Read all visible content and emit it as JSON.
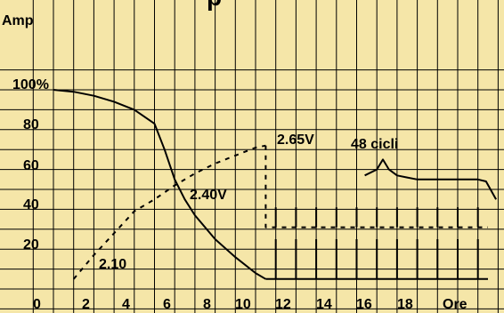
{
  "chart_data": {
    "type": "line",
    "title": "",
    "ylabel": "Amp",
    "xlabel": "Ore",
    "x_ticks": [
      "0",
      "2",
      "4",
      "6",
      "8",
      "10",
      "12",
      "14",
      "16",
      "18"
    ],
    "y_ticks": [
      "100%",
      "80",
      "60",
      "40",
      "20"
    ],
    "xlim": [
      -1,
      23
    ],
    "ylim": [
      -12,
      112
    ],
    "grid": true,
    "annotations": [
      "2.10",
      "2.40V",
      "2.65V",
      "48 cicli"
    ],
    "series": [
      {
        "style": "solid",
        "x": [
          0,
          1,
          2,
          3,
          4,
          5,
          5.5,
          6,
          6.5,
          7,
          8,
          9,
          10,
          10.5
        ],
        "y": [
          100,
          99,
          97,
          94,
          90,
          83,
          70,
          55,
          45,
          37,
          25,
          16,
          8,
          5
        ]
      },
      {
        "style": "dashed",
        "x": [
          1,
          2,
          3,
          4,
          5,
          6,
          7,
          8,
          9,
          10,
          10.5
        ],
        "y": [
          5,
          17,
          28,
          39,
          45,
          52,
          58,
          63,
          67,
          71,
          72
        ]
      },
      {
        "style": "dashed",
        "x": [
          10.5,
          10.5,
          21.5
        ],
        "y": [
          72,
          31,
          31
        ]
      },
      {
        "style": "solid",
        "x": [
          10.5,
          21.5
        ],
        "y": [
          5,
          5
        ]
      },
      {
        "style": "solid",
        "x": [
          15.4,
          16,
          16.3,
          16.6,
          17,
          17.5,
          18,
          19,
          20,
          21,
          21.4,
          21.9
        ],
        "y": [
          57,
          60,
          65,
          60,
          57,
          56,
          55,
          55,
          55,
          55,
          54,
          45
        ]
      }
    ],
    "pulse_trains": [
      {
        "style": "solid",
        "base": 5,
        "top": 25,
        "x": [
          11,
          12,
          13,
          14,
          15,
          16,
          17,
          18,
          19,
          20,
          21
        ]
      },
      {
        "style": "solid",
        "base": 31,
        "top": 41,
        "x": [
          11,
          12,
          13,
          14,
          15,
          16,
          17,
          18,
          19,
          20,
          21
        ]
      }
    ]
  }
}
